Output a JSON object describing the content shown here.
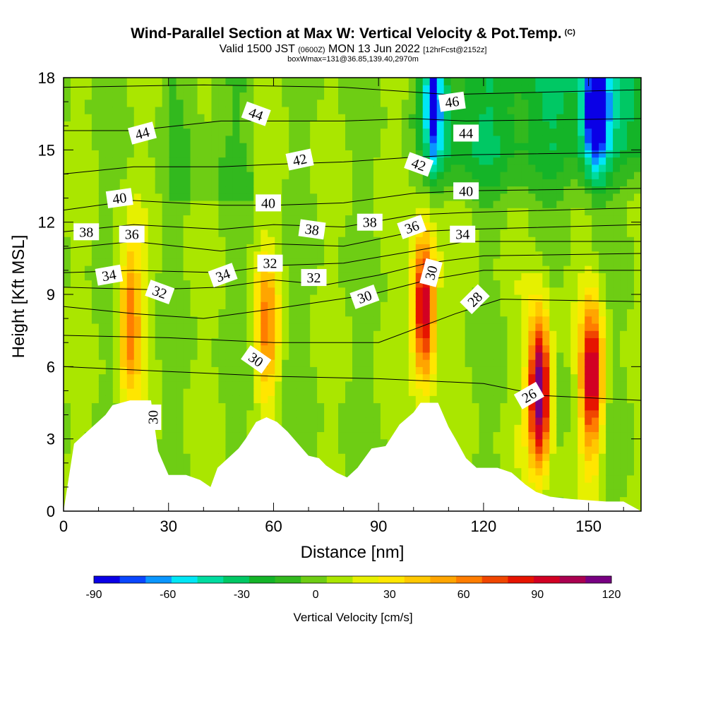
{
  "title": {
    "main": "Wind-Parallel Section at Max W: Vertical Velocity & Pot.Temp.",
    "copyright": "(C)",
    "valid_prefix": "Valid 1500 JST",
    "valid_utc": "(0600Z)",
    "valid_date": "MON 13 Jun 2022",
    "forecast": "[12hrFcst@2152z]",
    "box_info": "boxWmax=131@36.85,139.40,2970m"
  },
  "colors": {
    "palette": [
      "#0a00e6",
      "#0a46ff",
      "#0a96ff",
      "#00e6f5",
      "#00dca0",
      "#00c864",
      "#14b428",
      "#32b91e",
      "#6ecd14",
      "#aae600",
      "#e6f000",
      "#ffe600",
      "#ffc800",
      "#ffa500",
      "#ff7d00",
      "#f04600",
      "#e61400",
      "#d20023",
      "#aa0050",
      "#780082"
    ],
    "terrain": "#ffffff",
    "contour": "#000000"
  },
  "chart_data": {
    "type": "heatmap",
    "xlabel": "Distance [nm]",
    "ylabel": "Height [Kft MSL]",
    "xlim": [
      0,
      165
    ],
    "ylim": [
      0,
      18
    ],
    "xticks": [
      0,
      30,
      60,
      90,
      120,
      150
    ],
    "yticks": [
      0,
      3,
      6,
      9,
      12,
      15,
      18
    ],
    "colorbar": {
      "label": "Vertical Velocity [cm/s]",
      "levels": [
        -90,
        -80,
        -70,
        -60,
        -50,
        -40,
        -30,
        -20,
        -10,
        0,
        10,
        20,
        30,
        40,
        50,
        60,
        70,
        80,
        90,
        100,
        110,
        120
      ],
      "tick_labels": [
        -90,
        -60,
        -30,
        0,
        30,
        60,
        90,
        120
      ]
    },
    "updrafts": [
      {
        "x": 19,
        "z": 8.0,
        "w": 60
      },
      {
        "x": 58,
        "z": 7.5,
        "w": 50
      },
      {
        "x": 103,
        "z": 8.5,
        "w": 100
      },
      {
        "x": 136,
        "z": 5.0,
        "w": 120
      },
      {
        "x": 151,
        "z": 5.5,
        "w": 95
      }
    ],
    "downdrafts": [
      {
        "x": 152,
        "z": 16.5,
        "w": -90
      },
      {
        "x": 105,
        "z": 17.0,
        "w": -60
      }
    ],
    "terrain_profile": [
      [
        0,
        0.0
      ],
      [
        3,
        2.8
      ],
      [
        6,
        3.2
      ],
      [
        9,
        3.6
      ],
      [
        12,
        4.0
      ],
      [
        14,
        4.4
      ],
      [
        19,
        4.6
      ],
      [
        25,
        4.6
      ],
      [
        27,
        2.5
      ],
      [
        30,
        1.5
      ],
      [
        35,
        1.5
      ],
      [
        39,
        1.3
      ],
      [
        42,
        1.0
      ],
      [
        44,
        1.8
      ],
      [
        47,
        2.2
      ],
      [
        50,
        2.6
      ],
      [
        52,
        3.0
      ],
      [
        55,
        3.7
      ],
      [
        58,
        3.9
      ],
      [
        61,
        3.7
      ],
      [
        64,
        3.3
      ],
      [
        67,
        2.8
      ],
      [
        70,
        2.3
      ],
      [
        73,
        2.2
      ],
      [
        75,
        1.9
      ],
      [
        78,
        1.6
      ],
      [
        81,
        1.4
      ],
      [
        84,
        1.8
      ],
      [
        88,
        2.6
      ],
      [
        92,
        2.7
      ],
      [
        96,
        3.6
      ],
      [
        100,
        4.1
      ],
      [
        102,
        4.5
      ],
      [
        107,
        4.5
      ],
      [
        110,
        3.5
      ],
      [
        112,
        3.0
      ],
      [
        115,
        2.2
      ],
      [
        118,
        1.8
      ],
      [
        124,
        1.8
      ],
      [
        128,
        1.6
      ],
      [
        132,
        1.1
      ],
      [
        135,
        0.8
      ],
      [
        139,
        0.6
      ],
      [
        145,
        0.5
      ],
      [
        155,
        0.4
      ],
      [
        160,
        0.4
      ],
      [
        165,
        0.0
      ]
    ],
    "theta_contours": [
      {
        "label": "26",
        "levels": [
          [
            0,
            6.0
          ],
          [
            30,
            5.8
          ],
          [
            60,
            5.6
          ],
          [
            90,
            5.5
          ],
          [
            120,
            5.3
          ],
          [
            137,
            4.8
          ],
          [
            165,
            4.6
          ]
        ]
      },
      {
        "label": "28",
        "levels": [
          [
            0,
            7.3
          ],
          [
            30,
            7.2
          ],
          [
            60,
            7.0
          ],
          [
            90,
            7.0
          ],
          [
            112,
            8.2
          ],
          [
            125,
            8.8
          ],
          [
            165,
            8.7
          ]
        ]
      },
      {
        "label": "30",
        "levels": [
          [
            0,
            8.5
          ],
          [
            20,
            8.2
          ],
          [
            40,
            8.0
          ],
          [
            60,
            8.4
          ],
          [
            88,
            9.0
          ],
          [
            104,
            9.6
          ],
          [
            120,
            10.0
          ],
          [
            165,
            10.0
          ]
        ]
      },
      {
        "label": "32",
        "levels": [
          [
            0,
            9.3
          ],
          [
            25,
            9.2
          ],
          [
            45,
            9.3
          ],
          [
            60,
            9.6
          ],
          [
            75,
            9.4
          ],
          [
            90,
            9.8
          ],
          [
            104,
            10.3
          ],
          [
            120,
            10.6
          ],
          [
            165,
            10.7
          ]
        ]
      },
      {
        "label": "34",
        "levels": [
          [
            0,
            9.9
          ],
          [
            20,
            10.0
          ],
          [
            45,
            9.9
          ],
          [
            60,
            10.2
          ],
          [
            80,
            10.3
          ],
          [
            100,
            10.8
          ],
          [
            115,
            11.2
          ],
          [
            165,
            11.2
          ]
        ]
      },
      {
        "label": "36",
        "levels": [
          [
            0,
            10.9
          ],
          [
            20,
            11.2
          ],
          [
            45,
            10.8
          ],
          [
            60,
            11.1
          ],
          [
            80,
            11.0
          ],
          [
            100,
            11.6
          ],
          [
            115,
            11.7
          ],
          [
            165,
            11.9
          ]
        ]
      },
      {
        "label": "38",
        "levels": [
          [
            0,
            11.6
          ],
          [
            20,
            11.9
          ],
          [
            45,
            11.7
          ],
          [
            60,
            11.9
          ],
          [
            80,
            11.8
          ],
          [
            100,
            12.3
          ],
          [
            115,
            12.4
          ],
          [
            165,
            12.6
          ]
        ]
      },
      {
        "label": "40",
        "levels": [
          [
            0,
            12.5
          ],
          [
            20,
            12.9
          ],
          [
            45,
            12.7
          ],
          [
            60,
            12.7
          ],
          [
            80,
            12.8
          ],
          [
            100,
            13.2
          ],
          [
            115,
            13.3
          ],
          [
            165,
            13.4
          ]
        ]
      },
      {
        "label": "42",
        "levels": [
          [
            0,
            14.0
          ],
          [
            20,
            14.3
          ],
          [
            45,
            14.3
          ],
          [
            60,
            14.4
          ],
          [
            80,
            14.5
          ],
          [
            100,
            14.7
          ],
          [
            115,
            14.8
          ],
          [
            165,
            14.9
          ]
        ]
      },
      {
        "label": "44",
        "levels": [
          [
            0,
            15.8
          ],
          [
            20,
            15.8
          ],
          [
            45,
            16.2
          ],
          [
            60,
            16.2
          ],
          [
            80,
            16.2
          ],
          [
            100,
            16.3
          ],
          [
            115,
            16.2
          ],
          [
            165,
            16.3
          ]
        ]
      },
      {
        "label": "46",
        "levels": [
          [
            0,
            17.6
          ],
          [
            40,
            17.7
          ],
          [
            80,
            17.6
          ],
          [
            110,
            17.3
          ],
          [
            165,
            17.5
          ]
        ]
      }
    ],
    "contour_labels": [
      {
        "text": "44",
        "x": 22.5,
        "z": 15.7,
        "rot": -15
      },
      {
        "text": "44",
        "x": 55,
        "z": 16.5,
        "rot": 20
      },
      {
        "text": "44",
        "x": 115,
        "z": 15.7,
        "rot": 0
      },
      {
        "text": "46",
        "x": 111,
        "z": 17.0,
        "rot": -8
      },
      {
        "text": "42",
        "x": 67.5,
        "z": 14.6,
        "rot": -12
      },
      {
        "text": "42",
        "x": 101.5,
        "z": 14.4,
        "rot": 20
      },
      {
        "text": "40",
        "x": 16,
        "z": 13.0,
        "rot": -8
      },
      {
        "text": "40",
        "x": 58.5,
        "z": 12.8,
        "rot": 0
      },
      {
        "text": "40",
        "x": 115,
        "z": 13.3,
        "rot": 0
      },
      {
        "text": "38",
        "x": 6.5,
        "z": 11.6,
        "rot": 0
      },
      {
        "text": "38",
        "x": 71,
        "z": 11.7,
        "rot": 8
      },
      {
        "text": "38",
        "x": 87.5,
        "z": 12.0,
        "rot": 0
      },
      {
        "text": "36",
        "x": 19.5,
        "z": 11.5,
        "rot": 0
      },
      {
        "text": "36",
        "x": 99.5,
        "z": 11.8,
        "rot": -20
      },
      {
        "text": "34",
        "x": 13,
        "z": 9.8,
        "rot": -10
      },
      {
        "text": "34",
        "x": 45.5,
        "z": 9.8,
        "rot": -20
      },
      {
        "text": "34",
        "x": 114,
        "z": 11.5,
        "rot": 0
      },
      {
        "text": "32",
        "x": 27.5,
        "z": 9.1,
        "rot": 20
      },
      {
        "text": "32",
        "x": 59,
        "z": 10.3,
        "rot": 0
      },
      {
        "text": "32",
        "x": 71.5,
        "z": 9.7,
        "rot": 0
      },
      {
        "text": "30",
        "x": 55,
        "z": 6.3,
        "rot": 35
      },
      {
        "text": "30",
        "x": 86,
        "z": 8.9,
        "rot": -20
      },
      {
        "text": "30",
        "x": 105,
        "z": 9.9,
        "rot": -75
      },
      {
        "text": "30",
        "x": 25.5,
        "z": 3.9,
        "rot": -90
      },
      {
        "text": "28",
        "x": 117.5,
        "z": 8.8,
        "rot": -45
      },
      {
        "text": "26",
        "x": 133,
        "z": 4.8,
        "rot": -30
      }
    ]
  }
}
